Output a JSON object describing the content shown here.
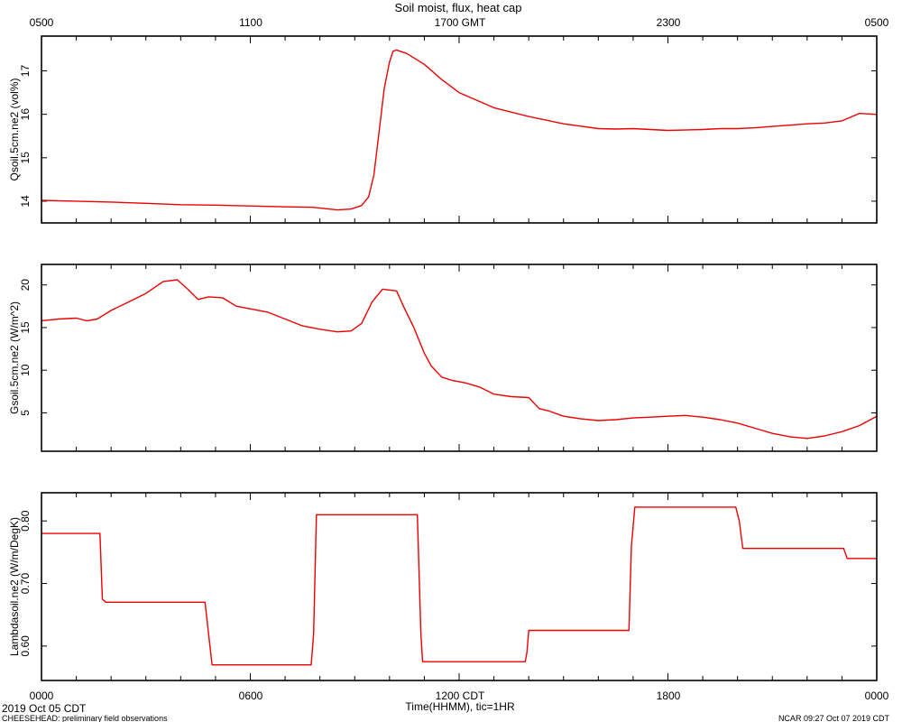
{
  "title": "Soil moist, flux, heat cap",
  "top_axis": {
    "tick_labels": [
      "0500",
      "1100",
      "1700 GMT",
      "2300",
      "0500"
    ]
  },
  "bottom_axis": {
    "tick_labels": [
      "0000",
      "0600",
      "1200 CDT",
      "1800",
      "0000"
    ],
    "label": "Time(HHMM), tic=1HR"
  },
  "footer": {
    "date_left": "2019 Oct 05 CDT",
    "project_note": "CHEESEHEAD: preliminary field observations",
    "credit_right": "NCAR 09:27 Oct 07 2019 CDT"
  },
  "colors": {
    "series": "#ee0000",
    "axes": "#000000"
  },
  "chart_data": [
    {
      "type": "line",
      "ylabel": "Qsoil.5cm.ne2 (vol%)",
      "xlim": [
        0,
        24
      ],
      "ylim": [
        13.5,
        17.8
      ],
      "yticks": [
        14,
        15,
        16,
        17
      ],
      "series": [
        {
          "x": [
            0,
            1,
            2,
            3,
            4,
            5,
            6,
            7,
            7.8,
            8.5,
            8.9,
            9.2,
            9.4,
            9.55,
            9.7,
            9.85,
            10.0,
            10.1,
            10.2,
            10.5,
            11,
            11.5,
            12,
            13,
            14,
            15,
            16,
            16.5,
            17,
            18,
            19,
            19.5,
            20,
            20.5,
            21,
            21.5,
            22,
            22.5,
            23,
            23.5,
            24
          ],
          "y": [
            14.02,
            14.0,
            13.98,
            13.95,
            13.92,
            13.91,
            13.89,
            13.87,
            13.86,
            13.8,
            13.82,
            13.9,
            14.1,
            14.6,
            15.6,
            16.6,
            17.2,
            17.45,
            17.48,
            17.4,
            17.15,
            16.8,
            16.5,
            16.15,
            15.95,
            15.78,
            15.67,
            15.66,
            15.67,
            15.63,
            15.65,
            15.67,
            15.67,
            15.69,
            15.72,
            15.75,
            15.78,
            15.8,
            15.85,
            16.02,
            16.0
          ]
        }
      ]
    },
    {
      "type": "line",
      "ylabel": "Gsoil.5cm.ne2 (W/m^2)",
      "xlim": [
        0,
        24
      ],
      "ylim": [
        0.5,
        22.4
      ],
      "yticks": [
        5,
        10,
        15,
        20
      ],
      "series": [
        {
          "x": [
            0,
            0.5,
            1,
            1.3,
            1.6,
            2,
            2.5,
            3,
            3.5,
            3.9,
            4.2,
            4.5,
            4.8,
            5.2,
            5.6,
            6,
            6.5,
            7,
            7.5,
            8,
            8.5,
            8.9,
            9.2,
            9.5,
            9.8,
            10.2,
            10.4,
            10.7,
            11,
            11.2,
            11.5,
            11.8,
            12.2,
            12.6,
            13,
            13.5,
            14,
            14.3,
            14.6,
            15,
            15.5,
            16,
            16.5,
            17,
            17.5,
            18,
            18.5,
            19,
            19.5,
            20,
            20.5,
            21,
            21.5,
            22,
            22.5,
            23,
            23.5,
            24
          ],
          "y": [
            15.8,
            16.0,
            16.1,
            15.8,
            16.0,
            17.0,
            18.0,
            19.0,
            20.4,
            20.6,
            19.5,
            18.3,
            18.6,
            18.5,
            17.5,
            17.2,
            16.8,
            16.0,
            15.2,
            14.8,
            14.5,
            14.6,
            15.5,
            18.0,
            19.5,
            19.3,
            17.5,
            15.0,
            12.0,
            10.5,
            9.2,
            8.8,
            8.5,
            8.0,
            7.2,
            6.9,
            6.8,
            5.5,
            5.2,
            4.6,
            4.3,
            4.1,
            4.2,
            4.4,
            4.5,
            4.6,
            4.7,
            4.5,
            4.2,
            3.8,
            3.2,
            2.6,
            2.2,
            2.0,
            2.3,
            2.8,
            3.5,
            4.6
          ]
        }
      ]
    },
    {
      "type": "line",
      "ylabel": "Lambdasoil.ne2 (W/m/DegK)",
      "xlim": [
        0,
        24
      ],
      "ylim": [
        0.545,
        0.845
      ],
      "yticks": [
        0.6,
        0.7,
        0.8
      ],
      "series": [
        {
          "x": [
            0,
            1.68,
            1.75,
            1.85,
            4.7,
            4.8,
            4.9,
            7.75,
            7.82,
            7.9,
            10.8,
            10.9,
            10.95,
            13.9,
            13.95,
            14.0,
            16.88,
            16.95,
            17.05,
            19.95,
            20.05,
            20.15,
            23.05,
            23.15,
            24
          ],
          "y": [
            0.78,
            0.78,
            0.675,
            0.67,
            0.67,
            0.62,
            0.57,
            0.57,
            0.62,
            0.81,
            0.81,
            0.62,
            0.575,
            0.575,
            0.59,
            0.625,
            0.625,
            0.76,
            0.822,
            0.822,
            0.8,
            0.756,
            0.756,
            0.74,
            0.74
          ]
        }
      ]
    }
  ]
}
